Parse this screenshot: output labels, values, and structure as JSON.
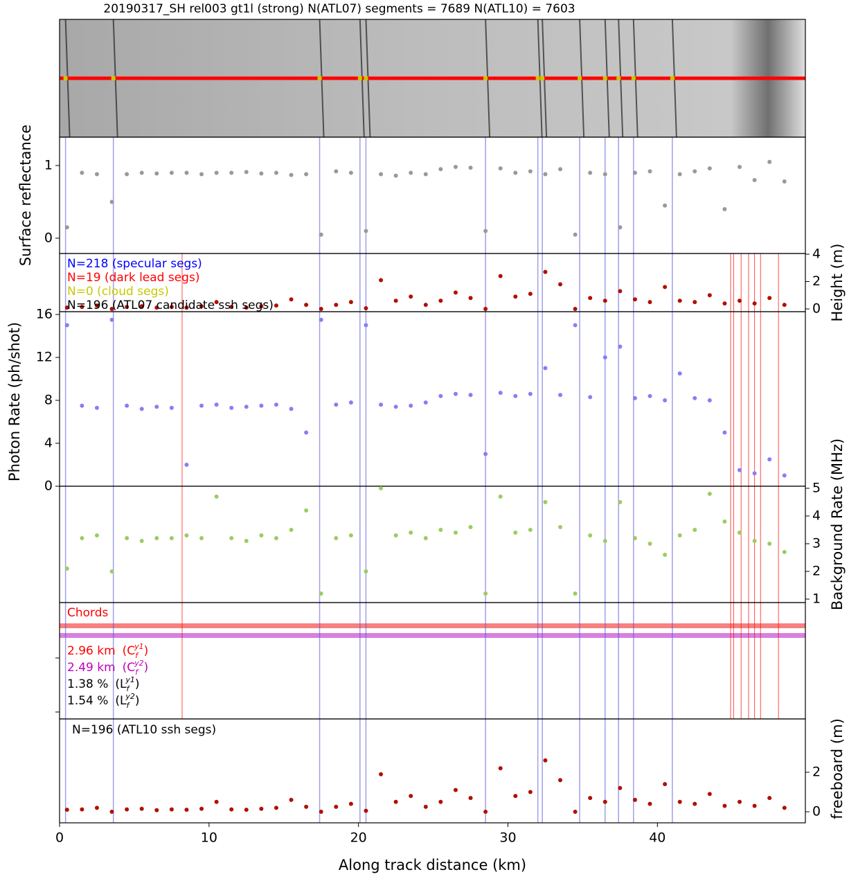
{
  "chart_data": [
    {
      "type": "image",
      "title": "20190317_SH rel003 gt1l (strong)  N(ATL07) segments = 7689 N(ATL10) = 7603"
    },
    {
      "type": "scatter",
      "ylabel": "Surface reflectance",
      "yaxis": "left",
      "color": "#999999",
      "x": [
        0.5,
        1.5,
        2.5,
        3.5,
        4.5,
        5.5,
        6.5,
        7.5,
        8.5,
        9.5,
        10.5,
        11.5,
        12.5,
        13.5,
        14.5,
        15.5,
        16.5,
        17.5,
        18.5,
        19.5,
        20.5,
        21.5,
        22.5,
        23.5,
        24.5,
        25.5,
        26.5,
        27.5,
        28.5,
        29.5,
        30.5,
        31.5,
        32.5,
        33.5,
        34.5,
        35.5,
        36.5,
        37.5,
        38.5,
        39.5,
        40.5,
        41.5,
        42.5,
        43.5,
        44.5,
        45.5,
        46.5,
        47.5,
        48.5
      ],
      "values": [
        0.15,
        0.9,
        0.88,
        0.5,
        0.88,
        0.9,
        0.89,
        0.9,
        0.9,
        0.88,
        0.9,
        0.9,
        0.91,
        0.89,
        0.9,
        0.87,
        0.88,
        0.05,
        0.92,
        0.9,
        0.1,
        0.88,
        0.86,
        0.9,
        0.88,
        0.95,
        0.98,
        0.97,
        0.1,
        0.96,
        0.9,
        0.92,
        0.88,
        0.95,
        0.05,
        0.9,
        0.88,
        0.15,
        0.9,
        0.92,
        0.45,
        0.88,
        0.92,
        0.96,
        0.4,
        0.98,
        0.8,
        1.05,
        0.78
      ],
      "ylim": [
        -0.21,
        1.39
      ],
      "yticks": [
        0,
        1
      ]
    },
    {
      "type": "scatter",
      "ylabel": "Height (m)",
      "yaxis": "right",
      "color": "#b01000",
      "x": [
        0.5,
        1.5,
        2.5,
        3.5,
        4.5,
        5.5,
        6.5,
        7.5,
        8.5,
        9.5,
        10.5,
        11.5,
        12.5,
        13.5,
        14.5,
        15.5,
        16.5,
        17.5,
        18.5,
        19.5,
        20.5,
        21.5,
        22.5,
        23.5,
        24.5,
        25.5,
        26.5,
        27.5,
        28.5,
        29.5,
        30.5,
        31.5,
        32.5,
        33.5,
        34.5,
        35.5,
        36.5,
        37.5,
        38.5,
        39.5,
        40.5,
        41.5,
        42.5,
        43.5,
        44.5,
        45.5,
        46.5,
        47.5,
        48.5
      ],
      "values": [
        0.1,
        0.15,
        0.25,
        0.0,
        0.15,
        0.2,
        0.1,
        0.15,
        0.1,
        0.2,
        0.5,
        0.15,
        0.1,
        0.2,
        0.25,
        0.7,
        0.3,
        0.0,
        0.3,
        0.5,
        0.05,
        2.1,
        0.6,
        0.9,
        0.3,
        0.6,
        1.2,
        0.8,
        0.0,
        2.4,
        0.9,
        1.1,
        2.7,
        1.8,
        0.0,
        0.8,
        0.6,
        1.3,
        0.7,
        0.5,
        1.6,
        0.6,
        0.5,
        1.0,
        0.4,
        0.6,
        0.4,
        0.8,
        0.3
      ],
      "ylim": [
        -0.2,
        4.05
      ],
      "yticks": [
        0,
        2,
        4
      ],
      "annotations": [
        {
          "text": "N=218 (specular segs)",
          "color": "#0000ff"
        },
        {
          "text": "N=19 (dark lead segs)",
          "color": "#ff0000"
        },
        {
          "text": "N=0 (cloud segs)",
          "color": "#c8c800"
        },
        {
          "text": "N=196 (ATL07 candidate ssh segs)",
          "color": "#000000"
        }
      ],
      "specular_x": [
        0.4,
        3.6,
        17.4,
        20.1,
        20.5,
        28.5,
        32.0,
        32.3,
        34.8,
        36.5,
        37.4,
        38.4,
        41.0
      ],
      "dark_lead_x": [
        8.2,
        44.9,
        45.1,
        45.6,
        46.1,
        46.5,
        46.9,
        48.1
      ]
    },
    {
      "type": "scatter",
      "ylabel": "Photon Rate (ph/shot)",
      "yaxis": "left",
      "color": "#8a7cf5",
      "x": [
        0.5,
        1.5,
        2.5,
        3.5,
        4.5,
        5.5,
        6.5,
        7.5,
        8.5,
        9.5,
        10.5,
        11.5,
        12.5,
        13.5,
        14.5,
        15.5,
        16.5,
        17.5,
        18.5,
        19.5,
        20.5,
        21.5,
        22.5,
        23.5,
        24.5,
        25.5,
        26.5,
        27.5,
        28.5,
        29.5,
        30.5,
        31.5,
        32.5,
        33.5,
        34.5,
        35.5,
        36.5,
        37.5,
        38.5,
        39.5,
        40.5,
        41.5,
        42.5,
        43.5,
        44.5,
        45.5,
        46.5,
        47.5,
        48.5
      ],
      "values": [
        15,
        7.5,
        7.3,
        15.5,
        7.5,
        7.2,
        7.4,
        7.3,
        2,
        7.5,
        7.6,
        7.3,
        7.4,
        7.5,
        7.6,
        7.2,
        5,
        15.5,
        7.6,
        7.8,
        15,
        7.6,
        7.4,
        7.5,
        7.8,
        8.4,
        8.6,
        8.5,
        3,
        8.7,
        8.4,
        8.6,
        11,
        8.5,
        15,
        8.3,
        12,
        13,
        8.2,
        8.4,
        8.0,
        10.5,
        8.2,
        8.0,
        5,
        1.5,
        1.2,
        2.5,
        1.0
      ],
      "ylim": [
        0,
        16.26
      ],
      "yticks": [
        0,
        4,
        8,
        12,
        16
      ]
    },
    {
      "type": "scatter",
      "ylabel": "Background Rate (MHz)",
      "yaxis": "right",
      "color": "#9ccc62",
      "x": [
        0.5,
        1.5,
        2.5,
        3.5,
        4.5,
        5.5,
        6.5,
        7.5,
        8.5,
        9.5,
        10.5,
        11.5,
        12.5,
        13.5,
        14.5,
        15.5,
        16.5,
        17.5,
        18.5,
        19.5,
        20.5,
        21.5,
        22.5,
        23.5,
        24.5,
        25.5,
        26.5,
        27.5,
        28.5,
        29.5,
        30.5,
        31.5,
        32.5,
        33.5,
        34.5,
        35.5,
        36.5,
        37.5,
        38.5,
        39.5,
        40.5,
        41.5,
        42.5,
        43.5,
        44.5,
        45.5,
        46.5,
        47.5,
        48.5
      ],
      "values": [
        2.1,
        3.2,
        3.3,
        2.0,
        3.2,
        3.1,
        3.2,
        3.2,
        3.3,
        3.2,
        4.7,
        3.2,
        3.1,
        3.3,
        3.2,
        3.5,
        4.2,
        1.2,
        3.2,
        3.3,
        2.0,
        5.0,
        3.3,
        3.4,
        3.2,
        3.5,
        3.4,
        3.6,
        1.2,
        4.7,
        3.4,
        3.5,
        4.5,
        3.6,
        1.2,
        3.3,
        3.1,
        4.5,
        3.2,
        3.0,
        2.6,
        3.3,
        3.5,
        4.8,
        3.8,
        3.4,
        3.1,
        3.0,
        2.7
      ],
      "ylim": [
        0.875,
        5.075
      ],
      "yticks": [
        1,
        2,
        3,
        4,
        5
      ]
    },
    {
      "type": "chords",
      "title": "Chords",
      "annotations": [
        {
          "value": "2.96 km",
          "symbol": "(C",
          "sub": "f",
          "sup": "y1",
          "end": ")",
          "color": "#ff0000"
        },
        {
          "value": "2.49 km",
          "symbol": "(C",
          "sub": "f",
          "sup": "y2",
          "end": ")",
          "color": "#c000c0"
        },
        {
          "value": "1.38 %",
          "symbol": "(L",
          "sub": "f",
          "sup": "y1",
          "end": ")",
          "color": "#000000"
        },
        {
          "value": "1.54 %",
          "symbol": "(L",
          "sub": "f",
          "sup": "y2",
          "end": ")",
          "color": "#000000"
        }
      ]
    },
    {
      "type": "scatter",
      "ylabel": "freeboard (m)",
      "yaxis": "right",
      "color": "#b01000",
      "x": [
        0.5,
        1.5,
        2.5,
        3.5,
        4.5,
        5.5,
        6.5,
        7.5,
        8.5,
        9.5,
        10.5,
        11.5,
        12.5,
        13.5,
        14.5,
        15.5,
        16.5,
        17.5,
        18.5,
        19.5,
        20.5,
        21.5,
        22.5,
        23.5,
        24.5,
        25.5,
        26.5,
        27.5,
        28.5,
        29.5,
        30.5,
        31.5,
        32.5,
        33.5,
        34.5,
        35.5,
        36.5,
        37.5,
        38.5,
        39.5,
        40.5,
        41.5,
        42.5,
        43.5,
        44.5,
        45.5,
        46.5,
        47.5,
        48.5
      ],
      "values": [
        0.1,
        0.12,
        0.2,
        0.0,
        0.12,
        0.15,
        0.08,
        0.12,
        0.1,
        0.15,
        0.5,
        0.12,
        0.1,
        0.15,
        0.2,
        0.6,
        0.25,
        0.0,
        0.25,
        0.4,
        0.05,
        1.9,
        0.5,
        0.8,
        0.25,
        0.5,
        1.1,
        0.7,
        0.0,
        2.2,
        0.8,
        1.0,
        2.6,
        1.6,
        0.0,
        0.7,
        0.5,
        1.2,
        0.6,
        0.4,
        1.4,
        0.5,
        0.4,
        0.9,
        0.3,
        0.5,
        0.3,
        0.7,
        0.2
      ],
      "ylim": [
        -0.56,
        4.7
      ],
      "yticks": [
        0,
        2
      ],
      "annotations": [
        {
          "text": "N=196 (ATL10 ssh segs)",
          "color": "#000000"
        }
      ],
      "xlabel": "Along track distance (km)",
      "xlim": [
        0,
        49.9
      ],
      "xticks": [
        0,
        10,
        20,
        30,
        40
      ]
    }
  ]
}
